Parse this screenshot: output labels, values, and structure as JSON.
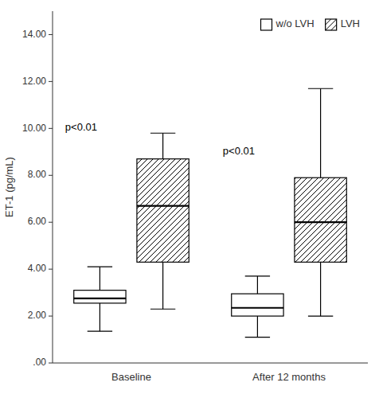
{
  "chart_data": {
    "type": "box",
    "ylabel": "ET-1 (pg/mL)",
    "categories": [
      "Baseline",
      "After 12 months"
    ],
    "ylim": [
      0.0,
      15.0
    ],
    "yticks": [
      {
        "value": 0.0,
        "label": ".00"
      },
      {
        "value": 2.0,
        "label": "2.00"
      },
      {
        "value": 4.0,
        "label": "4.00"
      },
      {
        "value": 6.0,
        "label": "6.00"
      },
      {
        "value": 8.0,
        "label": "8.00"
      },
      {
        "value": 10.0,
        "label": "10.00"
      },
      {
        "value": 12.0,
        "label": "12.00"
      },
      {
        "value": 14.0,
        "label": "14.00"
      }
    ],
    "series": [
      {
        "name": "w/o LVH",
        "color": "black",
        "whisker_min": [
          1.35,
          1.1
        ],
        "q1": [
          2.55,
          2.0
        ],
        "median": [
          2.75,
          2.35
        ],
        "q3": [
          3.1,
          2.95
        ],
        "whisker_max": [
          4.1,
          3.7
        ]
      },
      {
        "name": "LVH",
        "color": "black",
        "whisker_min": [
          2.3,
          2.0
        ],
        "q1": [
          4.3,
          4.3
        ],
        "median": [
          6.7,
          6.0
        ],
        "q3": [
          8.7,
          7.9
        ],
        "whisker_max": [
          9.8,
          11.7
        ]
      }
    ],
    "annotations": [
      {
        "text": "p<0.01",
        "category": "Baseline",
        "y": 9.9
      },
      {
        "text": "p<0.01",
        "category": "After 12 months",
        "y": 8.9
      }
    ],
    "legend": "upper right",
    "grid": false
  }
}
